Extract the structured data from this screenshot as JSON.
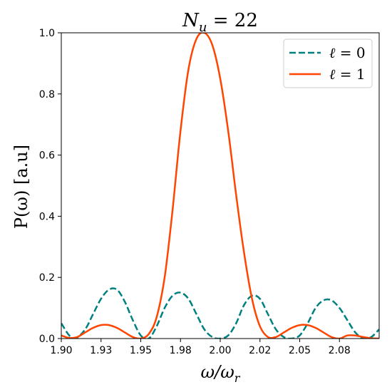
{
  "chart_data": {
    "type": "line",
    "title": "N_u = 22",
    "xlabel": "ω/ω_r",
    "ylabel": "P(ω)  [a.u]",
    "xlim": [
      1.9,
      2.1
    ],
    "ylim": [
      0,
      1.0
    ],
    "xticks": [
      {
        "value": 1.9,
        "label": "1.90"
      },
      {
        "value": 1.925,
        "label": "1.93"
      },
      {
        "value": 1.95,
        "label": "1.95"
      },
      {
        "value": 1.975,
        "label": "1.98"
      },
      {
        "value": 2.0,
        "label": "2.00"
      },
      {
        "value": 2.025,
        "label": "2.02"
      },
      {
        "value": 2.05,
        "label": "2.05"
      },
      {
        "value": 2.075,
        "label": "2.08"
      }
    ],
    "yticks": [
      {
        "value": 0.0,
        "label": "0.0"
      },
      {
        "value": 0.2,
        "label": "0.2"
      },
      {
        "value": 0.4,
        "label": "0.4"
      },
      {
        "value": 0.6,
        "label": "0.6"
      },
      {
        "value": 0.8,
        "label": "0.8"
      },
      {
        "value": 1.0,
        "label": "1.0"
      }
    ],
    "grid": false,
    "legend_position": "top-right",
    "series": [
      {
        "name": "ℓ = 0",
        "color": "#008080",
        "style": "dashed",
        "x": [
          1.9,
          1.905,
          1.909,
          1.915,
          1.92,
          1.925,
          1.93,
          1.935,
          1.94,
          1.945,
          1.95,
          1.955,
          1.96,
          1.965,
          1.97,
          1.975,
          1.98,
          1.985,
          1.99,
          1.995,
          2.0,
          2.005,
          2.01,
          2.015,
          2.02,
          2.025,
          2.03,
          2.035,
          2.04,
          2.045,
          2.05,
          2.055,
          2.06,
          2.065,
          2.07,
          2.075,
          2.08,
          2.085,
          2.09,
          2.095,
          2.1
        ],
        "y": [
          0.05,
          0.01,
          0.0,
          0.03,
          0.08,
          0.13,
          0.16,
          0.16,
          0.12,
          0.06,
          0.01,
          0.0,
          0.04,
          0.1,
          0.14,
          0.15,
          0.13,
          0.08,
          0.03,
          0.005,
          0.0,
          0.01,
          0.05,
          0.11,
          0.14,
          0.13,
          0.08,
          0.03,
          0.005,
          0.0,
          0.01,
          0.05,
          0.1,
          0.125,
          0.125,
          0.1,
          0.06,
          0.02,
          0.0,
          0.005,
          0.03
        ]
      },
      {
        "name": "ℓ = 1",
        "color": "#ff4500",
        "style": "solid",
        "x": [
          1.9,
          1.905,
          1.91,
          1.915,
          1.92,
          1.925,
          1.93,
          1.935,
          1.94,
          1.945,
          1.95,
          1.955,
          1.96,
          1.965,
          1.97,
          1.975,
          1.98,
          1.985,
          1.99,
          1.995,
          2.0,
          2.005,
          2.01,
          2.015,
          2.02,
          2.025,
          2.03,
          2.035,
          2.04,
          2.045,
          2.05,
          2.055,
          2.06,
          2.065,
          2.07,
          2.075,
          2.08,
          2.085,
          2.09,
          2.095,
          2.1
        ],
        "y": [
          0.01,
          0.002,
          0.005,
          0.02,
          0.035,
          0.044,
          0.044,
          0.035,
          0.02,
          0.005,
          0.0,
          0.015,
          0.07,
          0.2,
          0.42,
          0.68,
          0.88,
          0.98,
          1.0,
          0.96,
          0.85,
          0.68,
          0.47,
          0.28,
          0.13,
          0.04,
          0.005,
          0.005,
          0.02,
          0.035,
          0.044,
          0.044,
          0.035,
          0.02,
          0.005,
          0.0,
          0.01,
          0.01,
          0.005,
          0.001,
          0.0
        ]
      }
    ]
  }
}
